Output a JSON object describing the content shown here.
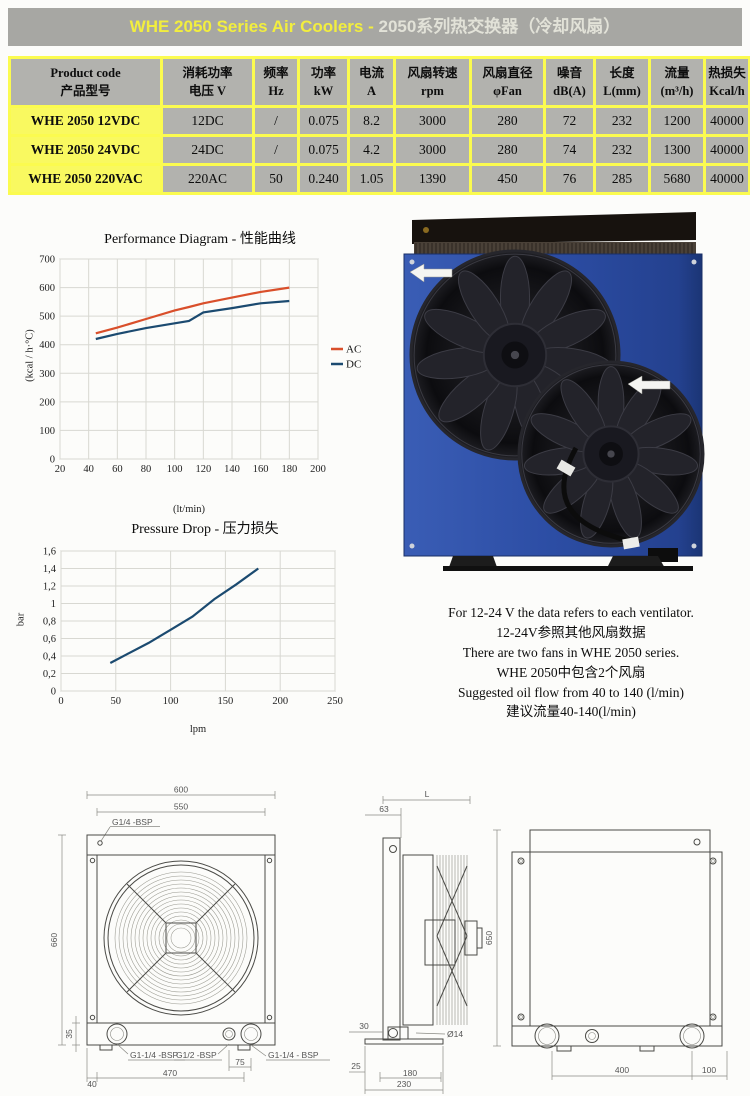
{
  "banner": {
    "title_en": "WHE 2050 Series Air Coolers - ",
    "title_zh": "2050系列热交换器（冷却风扇）"
  },
  "table": {
    "headers": [
      {
        "line1": "Product code",
        "line2": "产品型号"
      },
      {
        "line1": "消耗功率",
        "line2": "电压 V"
      },
      {
        "line1": "频率",
        "line2": "Hz"
      },
      {
        "line1": "功率",
        "line2": "kW"
      },
      {
        "line1": "电流",
        "line2": "A"
      },
      {
        "line1": "风扇转速",
        "line2": "rpm"
      },
      {
        "line1": "风扇直径",
        "line2": "φFan"
      },
      {
        "line1": "噪音",
        "line2": "dB(A)"
      },
      {
        "line1": "长度",
        "line2": "L(mm)"
      },
      {
        "line1": "流量",
        "line2": "(m³/h)"
      },
      {
        "line1": "热损失",
        "line2": "Kcal/h"
      }
    ],
    "rows": [
      [
        "WHE 2050 12VDC",
        "12DC",
        "/",
        "0.075",
        "8.2",
        "3000",
        "280",
        "72",
        "232",
        "1200",
        "40000"
      ],
      [
        "WHE 2050 24VDC",
        "24DC",
        "/",
        "0.075",
        "4.2",
        "3000",
        "280",
        "74",
        "232",
        "1300",
        "40000"
      ],
      [
        "WHE 2050 220VAC",
        "220AC",
        "50",
        "0.240",
        "1.05",
        "1390",
        "450",
        "76",
        "285",
        "5680",
        "40000"
      ]
    ]
  },
  "chart_data": [
    {
      "type": "line",
      "title": "Performance Diagram - 性能曲线",
      "xlabel": "(lt/min)",
      "ylabel": "(kcal / h·°C)",
      "xlim": [
        20,
        200
      ],
      "ylim": [
        0,
        700
      ],
      "xticks": [
        20,
        40,
        60,
        80,
        100,
        120,
        140,
        160,
        180,
        200
      ],
      "yticks": [
        0,
        100,
        200,
        300,
        400,
        500,
        600,
        700
      ],
      "grid": true,
      "legend": true,
      "legend_position": "right",
      "series": [
        {
          "name": "AC",
          "color": "#d94f2b",
          "x": [
            45,
            60,
            80,
            100,
            110,
            120,
            140,
            160,
            180
          ],
          "y": [
            440,
            460,
            490,
            520,
            532,
            545,
            565,
            585,
            600
          ]
        },
        {
          "name": "DC",
          "color": "#1b4a70",
          "x": [
            45,
            60,
            80,
            100,
            110,
            120,
            140,
            160,
            180
          ],
          "y": [
            420,
            438,
            458,
            475,
            483,
            513,
            528,
            545,
            553
          ]
        }
      ]
    },
    {
      "type": "line",
      "title": "Pressure Drop - 压力损失",
      "xlabel": "lpm",
      "ylabel": "bar",
      "xlim": [
        0,
        250
      ],
      "ylim": [
        0,
        1.6
      ],
      "xticks": [
        0,
        50,
        100,
        150,
        200,
        250
      ],
      "yticks": [
        0,
        0.2,
        0.4,
        0.6,
        0.8,
        1,
        1.2,
        1.4,
        1.6
      ],
      "ytick_labels": [
        "0",
        "0,2",
        "0,4",
        "0,6",
        "0,8",
        "1",
        "1,2",
        "1,4",
        "1,6"
      ],
      "grid": true,
      "legend": false,
      "series": [
        {
          "name": "Pressure drop",
          "color": "#1b4a70",
          "x": [
            45,
            60,
            80,
            100,
            120,
            140,
            160,
            180
          ],
          "y": [
            0.32,
            0.42,
            0.55,
            0.7,
            0.85,
            1.05,
            1.22,
            1.4
          ]
        }
      ]
    }
  ],
  "notes": {
    "lines": [
      "For 12-24 V the data refers to each ventilator.",
      "12-24V参照其他风扇数据",
      "There are two fans in WHE 2050 series.",
      "WHE 2050中包含2个风扇",
      "Suggested oil flow from 40 to 140 (l/min)",
      "建议流量40-140(l/min)"
    ]
  },
  "drawings": {
    "front": {
      "w600": "600",
      "w550": "550",
      "port_top": "G1/4 -BSP",
      "h660": "660",
      "h35": "35",
      "port_bl": "G1-1/4 -BSP",
      "port_bm": "G1/2 -BSP",
      "port_br": "G1-1/4 - BSP",
      "d40": "40",
      "d470": "470",
      "d75": "75"
    },
    "side": {
      "L": "L",
      "d63": "63",
      "d30": "30",
      "dia14": "Ø14",
      "d25": "25",
      "d180": "180",
      "d230": "230"
    },
    "back": {
      "h650": "650",
      "d400": "400",
      "d100": "100"
    }
  },
  "colors": {
    "banner_bg": "#a7a7a3",
    "banner_text_en": "#f2ee3e",
    "banner_text_zh": "#e2e2d8",
    "table_border": "#fbfb4f",
    "cell_bg": "#b2b2ae",
    "product_cell_bg": "#f9f960",
    "ac_line": "#d94f2b",
    "dc_line": "#1b4a70",
    "photo_body_blue": "#2c4da4"
  }
}
